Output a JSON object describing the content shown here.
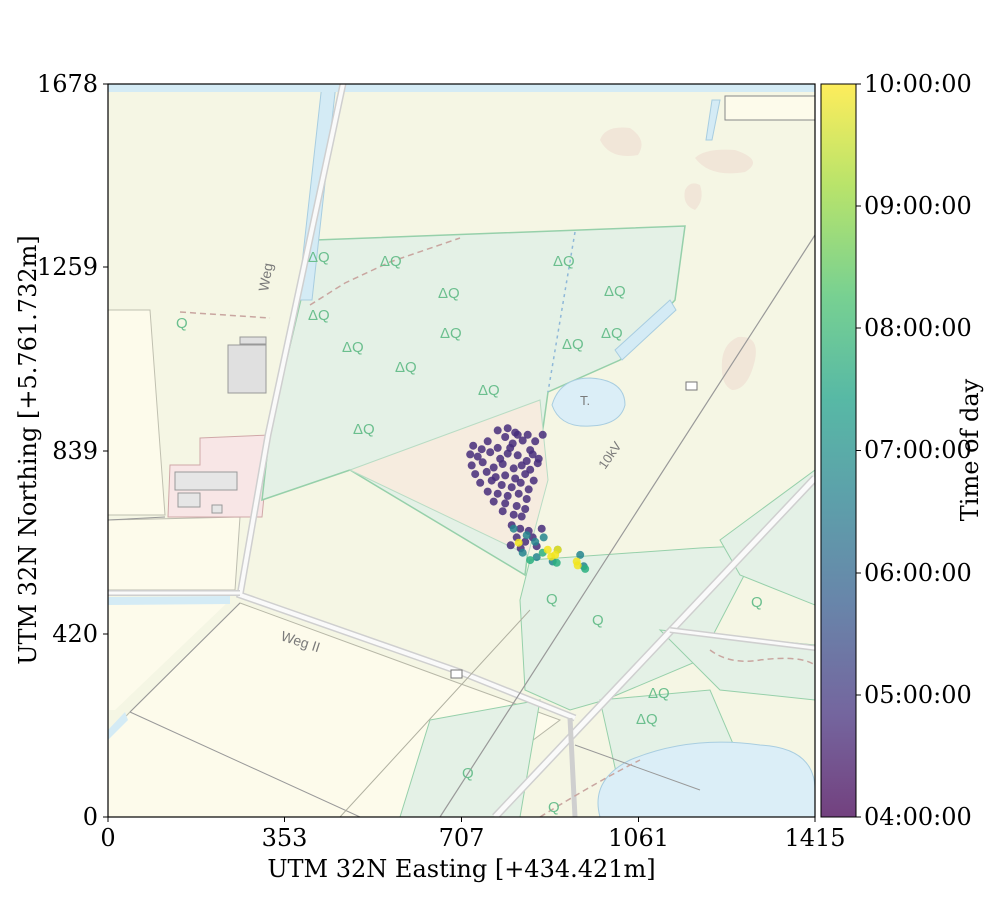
{
  "chart_data": {
    "type": "scatter",
    "title": "",
    "xlabel": "UTM 32N Easting [+434.421m]",
    "ylabel": "UTM 32N Northing [+5.761.732m]",
    "xlim": [
      0,
      1415
    ],
    "ylim": [
      0,
      1678
    ],
    "xticks": [
      "0",
      "353",
      "707",
      "1061",
      "1415"
    ],
    "yticks": [
      "0",
      "420",
      "839",
      "1259",
      "1678"
    ],
    "grid": false,
    "background": "topographic map",
    "colorbar": {
      "label": "Time of day",
      "colormap": "viridis",
      "range": [
        "04:00:00",
        "10:00:00"
      ],
      "ticks": [
        "04:00:00",
        "05:00:00",
        "06:00:00",
        "07:00:00",
        "08:00:00",
        "09:00:00",
        "10:00:00"
      ]
    },
    "series": [
      {
        "color_value": "04:00-05:00",
        "points": [
          [
            731,
            850
          ],
          [
            760,
            860
          ],
          [
            780,
            845
          ],
          [
            795,
            870
          ],
          [
            810,
            855
          ],
          [
            830,
            862
          ],
          [
            845,
            840
          ],
          [
            740,
            825
          ],
          [
            765,
            835
          ],
          [
            785,
            820
          ],
          [
            800,
            832
          ],
          [
            820,
            828
          ],
          [
            838,
            815
          ],
          [
            850,
            830
          ],
          [
            728,
            805
          ],
          [
            750,
            812
          ],
          [
            772,
            800
          ],
          [
            790,
            808
          ],
          [
            812,
            798
          ],
          [
            828,
            805
          ],
          [
            845,
            795
          ],
          [
            860,
            810
          ],
          [
            735,
            785
          ],
          [
            758,
            790
          ],
          [
            776,
            778
          ],
          [
            795,
            782
          ],
          [
            815,
            775
          ],
          [
            835,
            785
          ],
          [
            852,
            770
          ],
          [
            745,
            765
          ],
          [
            768,
            770
          ],
          [
            788,
            760
          ],
          [
            808,
            755
          ],
          [
            826,
            765
          ],
          [
            842,
            750
          ],
          [
            760,
            745
          ],
          [
            780,
            740
          ],
          [
            800,
            735
          ],
          [
            822,
            740
          ],
          [
            838,
            728
          ],
          [
            772,
            722
          ],
          [
            795,
            718
          ],
          [
            818,
            712
          ],
          [
            835,
            705
          ],
          [
            790,
            700
          ],
          [
            812,
            692
          ],
          [
            828,
            688
          ],
          [
            815,
            880
          ],
          [
            800,
            890
          ],
          [
            780,
            885
          ],
          [
            820,
            875
          ],
          [
            855,
            860
          ],
          [
            862,
            820
          ],
          [
            725,
            830
          ],
          [
            748,
            842
          ],
          [
            805,
            845
          ],
          [
            840,
            875
          ],
          [
            870,
            875
          ],
          [
            808,
            668
          ],
          [
            825,
            660
          ],
          [
            842,
            655
          ],
          [
            818,
            640
          ],
          [
            835,
            630
          ],
          [
            850,
            640
          ],
          [
            806,
            622
          ],
          [
            826,
            615
          ],
          [
            858,
            620
          ],
          [
            868,
            660
          ]
        ]
      },
      {
        "color_value": "06:30-07:30",
        "points": [
          [
            812,
            660
          ],
          [
            838,
            645
          ],
          [
            855,
            630
          ],
          [
            872,
            640
          ],
          [
            900,
            612
          ],
          [
            945,
            600
          ],
          [
            952,
            574
          ],
          [
            890,
            585
          ],
          [
            830,
            605
          ],
          [
            858,
            595
          ]
        ]
      },
      {
        "color_value": "07:30-08:30",
        "points": [
          [
            845,
            588
          ],
          [
            898,
            582
          ],
          [
            870,
            605
          ],
          [
            955,
            568
          ]
        ]
      },
      {
        "color_value": "09:30-10:00",
        "points": [
          [
            822,
            628
          ],
          [
            880,
            612
          ],
          [
            887,
            596
          ],
          [
            895,
            600
          ],
          [
            938,
            585
          ],
          [
            940,
            576
          ],
          [
            900,
            612
          ]
        ]
      }
    ]
  }
}
